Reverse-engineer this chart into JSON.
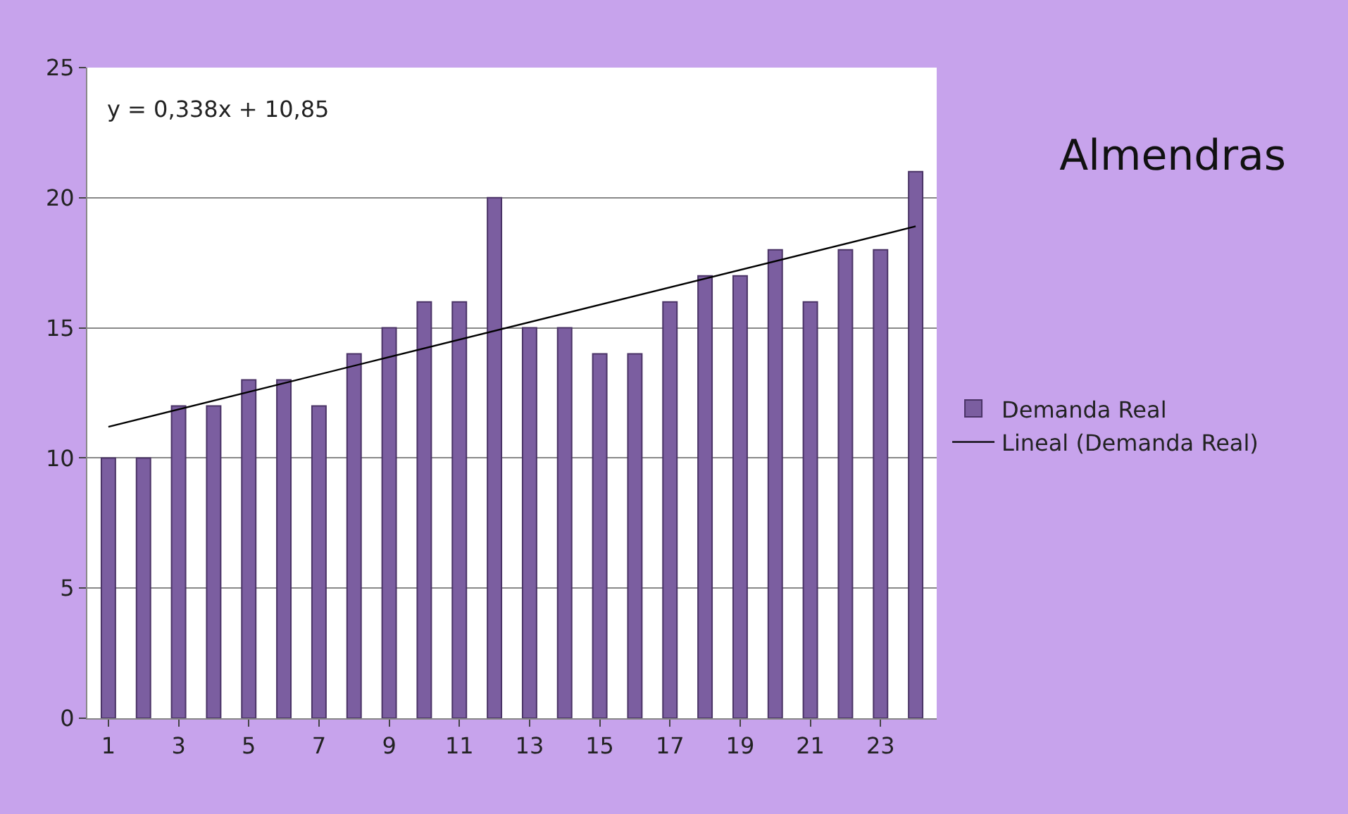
{
  "chart_data": {
    "type": "bar",
    "title": "Almendras",
    "x": [
      1,
      2,
      3,
      4,
      5,
      6,
      7,
      8,
      9,
      10,
      11,
      12,
      13,
      14,
      15,
      16,
      17,
      18,
      19,
      20,
      21,
      22,
      23,
      24
    ],
    "series": [
      {
        "name": "Demanda Real",
        "color": "#7b5ea0",
        "values": [
          10,
          10,
          12,
          12,
          13,
          13,
          12,
          14,
          15,
          16,
          16,
          20,
          15,
          15,
          14,
          14,
          16,
          17,
          17,
          18,
          16,
          18,
          18,
          21
        ]
      },
      {
        "name": "Lineal (Demanda Real)",
        "type": "line",
        "color": "#000000",
        "x": [
          1,
          24
        ],
        "values": [
          11.2,
          18.9
        ]
      }
    ],
    "annotations": [
      "y = 0,338x + 10,85"
    ],
    "xlim": [
      0.4,
      24.6
    ],
    "xticks": [
      1,
      3,
      5,
      7,
      9,
      11,
      13,
      15,
      17,
      19,
      21,
      23
    ],
    "ylim": [
      0,
      25
    ],
    "yticks": [
      0,
      5,
      10,
      15,
      20,
      25
    ],
    "grid": "y",
    "legend": "right"
  }
}
